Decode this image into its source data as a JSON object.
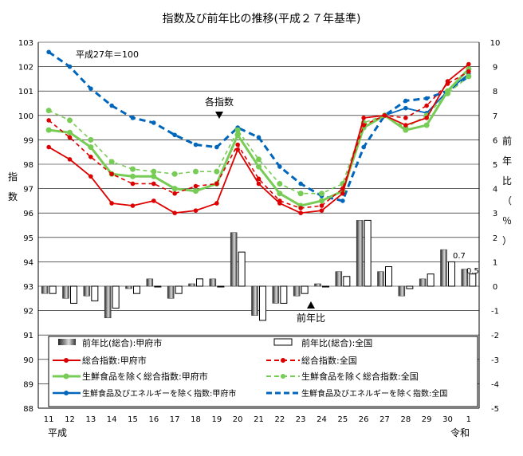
{
  "chart_data": {
    "type": "line",
    "title": "指数及び前年比の推移(平成２７年基準)",
    "base_note": "平成27年＝100",
    "left_axis_label": [
      "指",
      "数"
    ],
    "right_axis_label": [
      "前",
      "年",
      "比",
      "（",
      "％",
      "）"
    ],
    "left_ylim": [
      88,
      103
    ],
    "right_ylim": [
      -5,
      10
    ],
    "left_ticks": [
      "88",
      "89",
      "90",
      "91",
      "92",
      "93",
      "94",
      "95",
      "96",
      "97",
      "98",
      "99",
      "100",
      "101",
      "102",
      "103"
    ],
    "right_ticks": [
      "-5",
      "-4",
      "-3",
      "-2",
      "-1",
      "0",
      "1",
      "2",
      "3",
      "4",
      "5",
      "6",
      "7",
      "8",
      "9",
      "10"
    ],
    "categories": [
      "11",
      "12",
      "13",
      "14",
      "15",
      "16",
      "17",
      "18",
      "19",
      "20",
      "21",
      "22",
      "23",
      "24",
      "25",
      "26",
      "27",
      "28",
      "29",
      "30",
      "1"
    ],
    "era_start": "平成",
    "era_end": "令和",
    "grid": "horizontal",
    "annotations": {
      "index_arrow": "各指数",
      "yoy_arrow": "前年比",
      "last_kofu_yoy": "0.7",
      "last_national_yoy": "0.5"
    },
    "index_series": [
      {
        "name": "総合指数:甲府市",
        "color": "#dd0000",
        "dashed": false,
        "values": [
          98.7,
          98.2,
          97.5,
          96.4,
          96.3,
          96.5,
          96.0,
          96.1,
          96.4,
          98.6,
          97.2,
          96.4,
          96.0,
          96.1,
          96.8,
          99.9,
          100.0,
          99.6,
          99.9,
          101.4,
          102.1
        ]
      },
      {
        "name": "総合指数:全国",
        "color": "#dd0000",
        "dashed": true,
        "values": [
          99.8,
          99.1,
          98.3,
          97.6,
          97.2,
          97.2,
          96.8,
          97.1,
          97.2,
          98.8,
          97.4,
          96.5,
          96.2,
          96.3,
          97.0,
          99.6,
          100.0,
          99.9,
          100.4,
          101.3,
          101.8
        ]
      },
      {
        "name": "生鮮食品を除く総合指数:甲府市",
        "color": "#77cc55",
        "dashed": false,
        "values": [
          99.4,
          99.3,
          98.7,
          97.6,
          97.5,
          97.5,
          97.0,
          96.9,
          97.2,
          99.2,
          97.9,
          96.8,
          96.3,
          96.5,
          96.9,
          99.5,
          100.0,
          99.4,
          99.6,
          101.0,
          101.9
        ]
      },
      {
        "name": "生鮮食品を除く総合指数:全国",
        "color": "#77cc55",
        "dashed": true,
        "values": [
          100.2,
          99.8,
          99.0,
          98.1,
          97.8,
          97.7,
          97.6,
          97.7,
          97.7,
          99.4,
          98.2,
          97.2,
          96.8,
          96.8,
          97.2,
          99.7,
          100.0,
          99.5,
          100.0,
          100.9,
          101.6
        ]
      },
      {
        "name": "生鮮食品及びエネルギーを除く指数:甲府市",
        "color": "#0066bb",
        "dashed": false,
        "values": [
          null,
          null,
          null,
          null,
          null,
          null,
          null,
          null,
          null,
          null,
          null,
          null,
          null,
          null,
          null,
          null,
          100.0,
          100.3,
          100.1,
          101.0,
          101.7
        ]
      },
      {
        "name": "生鮮食品及びエネルギーを除く指数:全国",
        "color": "#0066bb",
        "dashed": true,
        "values": [
          102.6,
          102.0,
          101.1,
          100.4,
          99.9,
          99.7,
          99.2,
          98.8,
          98.7,
          99.5,
          99.1,
          97.9,
          97.2,
          96.7,
          96.5,
          98.7,
          100.0,
          100.6,
          100.7,
          101.0,
          101.6
        ]
      }
    ],
    "yoy_series": [
      {
        "name": "前年比(総合):甲府市",
        "values": [
          -0.3,
          -0.5,
          -0.4,
          -1.3,
          -0.1,
          0.3,
          -0.5,
          0.1,
          0.3,
          2.2,
          -1.2,
          -0.7,
          -0.4,
          0.1,
          0.6,
          2.7,
          0.6,
          -0.4,
          0.3,
          1.5,
          0.7
        ]
      },
      {
        "name": "前年比(総合):全国",
        "values": [
          -0.3,
          -0.7,
          -0.6,
          -0.9,
          -0.3,
          0.0,
          -0.3,
          0.3,
          0.0,
          1.4,
          -1.4,
          -0.7,
          -0.3,
          0.0,
          0.4,
          2.7,
          0.8,
          -0.1,
          0.5,
          1.0,
          0.5
        ]
      }
    ]
  },
  "legend": {
    "yoy_kofu": "前年比(総合):甲府市",
    "yoy_zenkoku": "前年比(総合):全国",
    "sogo_kofu": "総合指数:甲府市",
    "sogo_zenkoku": "総合指数:全国",
    "seisen_kofu": "生鮮食品を除く総合指数:甲府市",
    "seisen_zenkoku": "生鮮食品を除く総合指数:全国",
    "energy_kofu": "生鮮食品及びエネルギーを除く指数:甲府市",
    "energy_zenkoku": "生鮮食品及びエネルギーを除く指数:全国"
  }
}
